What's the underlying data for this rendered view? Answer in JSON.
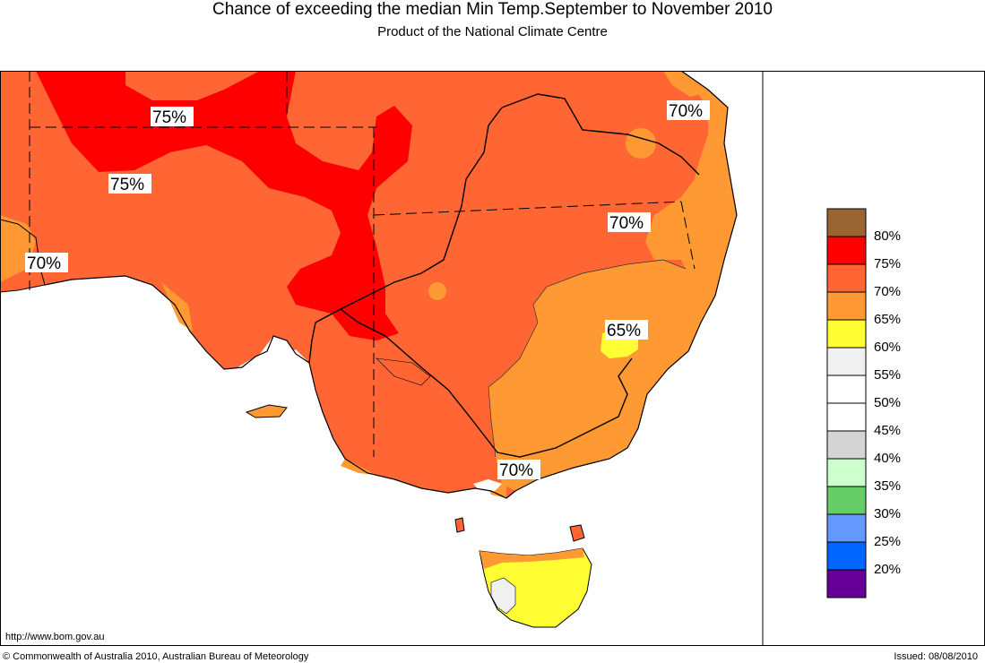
{
  "title": "Chance of exceeding the median Min Temp.September to November 2010",
  "subtitle": "Product of the National Climate Centre",
  "legend": [
    {
      "label": "80%",
      "color": "#996633"
    },
    {
      "label": "75%",
      "color": "#ff0000"
    },
    {
      "label": "70%",
      "color": "#ff6633"
    },
    {
      "label": "65%",
      "color": "#ff9933"
    },
    {
      "label": "60%",
      "color": "#ffff33"
    },
    {
      "label": "55%",
      "color": "#f0f0f0"
    },
    {
      "label": "50%",
      "color": "#ffffff"
    },
    {
      "label": "45%",
      "color": "#ffffff"
    },
    {
      "label": "40%",
      "color": "#d4d4d4"
    },
    {
      "label": "35%",
      "color": "#ccffcc"
    },
    {
      "label": "30%",
      "color": "#66cc66"
    },
    {
      "label": "25%",
      "color": "#6699ff"
    },
    {
      "label": "20%",
      "color": "#0066ff"
    },
    {
      "label": "",
      "color": "#660099"
    }
  ],
  "map_labels": [
    "75%",
    "75%",
    "70%",
    "70%",
    "70%",
    "65%",
    "70%"
  ],
  "footer": {
    "url": "http://www.bom.gov.au",
    "copyright": "© Commonwealth of Australia 2010, Australian Bureau of Meteorology",
    "issued": "Issued: 08/08/2010"
  },
  "colors": {
    "c75": "#ff0000",
    "c70": "#ff6633",
    "c65": "#ff9933",
    "c60": "#ffff33",
    "c55": "#f0f0f0",
    "ocean": "#ffffff"
  }
}
